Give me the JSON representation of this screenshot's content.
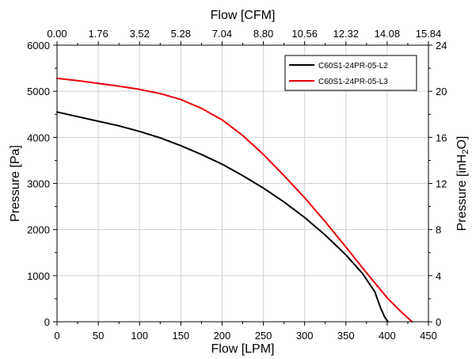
{
  "chart_data": {
    "type": "line",
    "xlabel": "Flow [LPM]",
    "ylabel": "Pressure [Pa]",
    "x2label": "Flow [CFM]",
    "y2label": "Pressure [inH",
    "y2label_sub": "2",
    "y2label_end": "O]",
    "xlim": [
      0,
      450
    ],
    "ylim": [
      0,
      6000
    ],
    "x2lim": [
      0,
      15.84
    ],
    "y2lim": [
      0,
      24
    ],
    "xticks": [
      "0",
      "50",
      "100",
      "150",
      "200",
      "250",
      "300",
      "350",
      "400",
      "450"
    ],
    "yticks": [
      "0",
      "1000",
      "2000",
      "3000",
      "4000",
      "5000",
      "6000"
    ],
    "x2ticks": [
      "0.00",
      "1.76",
      "3.52",
      "5.28",
      "7.04",
      "8.80",
      "10.56",
      "12.32",
      "14.08",
      "15.84"
    ],
    "y2ticks": [
      "0",
      "4",
      "8",
      "12",
      "16",
      "20",
      "24"
    ],
    "grid": true,
    "legend_position": "top-right",
    "series": [
      {
        "name": "C60S1-24PR-05-L2",
        "color": "#000000",
        "x": [
          0,
          25,
          50,
          75,
          100,
          125,
          150,
          175,
          200,
          225,
          250,
          275,
          300,
          325,
          350,
          370,
          385,
          392,
          397,
          401
        ],
        "y": [
          4550,
          4450,
          4350,
          4250,
          4130,
          3990,
          3820,
          3630,
          3420,
          3170,
          2900,
          2600,
          2260,
          1880,
          1450,
          1050,
          650,
          300,
          100,
          0
        ]
      },
      {
        "name": "C60S1-24PR-05-L3",
        "color": "#e8000b",
        "x": [
          0,
          25,
          50,
          75,
          100,
          125,
          150,
          175,
          200,
          225,
          250,
          275,
          300,
          325,
          350,
          375,
          400,
          415,
          430
        ],
        "y": [
          5280,
          5230,
          5170,
          5110,
          5040,
          4950,
          4820,
          4630,
          4380,
          4040,
          3630,
          3170,
          2690,
          2170,
          1620,
          1060,
          520,
          250,
          0
        ]
      }
    ]
  }
}
